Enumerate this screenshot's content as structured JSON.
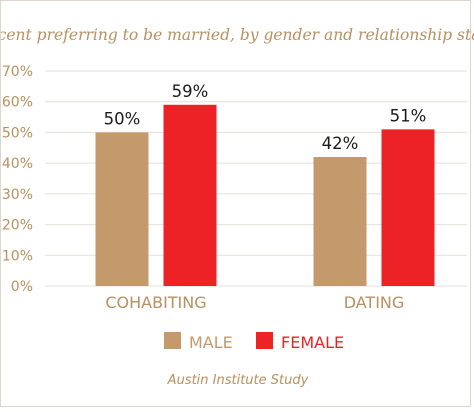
{
  "chart_data": {
    "type": "bar",
    "title": "Percent preferring to be married, by gender and relationship status",
    "categories": [
      "COHABITING",
      "DATING"
    ],
    "series": [
      {
        "name": "MALE",
        "color": "#c49a6c",
        "values": [
          50,
          42
        ],
        "labels": [
          "50%",
          "42%"
        ]
      },
      {
        "name": "FEMALE",
        "color": "#ec2227",
        "values": [
          59,
          51
        ],
        "labels": [
          "59%",
          "51%"
        ]
      }
    ],
    "yticks": [
      "0%",
      "10%",
      "20%",
      "30%",
      "40%",
      "50%",
      "60%",
      "70%"
    ],
    "ylim": [
      0,
      70
    ],
    "xlabel": "",
    "ylabel": "",
    "grid": true,
    "legend": "bottom-center"
  },
  "source": "Austin Institute Study",
  "colors": {
    "axis_text": "#b9905f",
    "grid": "#e4e0dc",
    "value_labels": "#1a1a1a"
  }
}
